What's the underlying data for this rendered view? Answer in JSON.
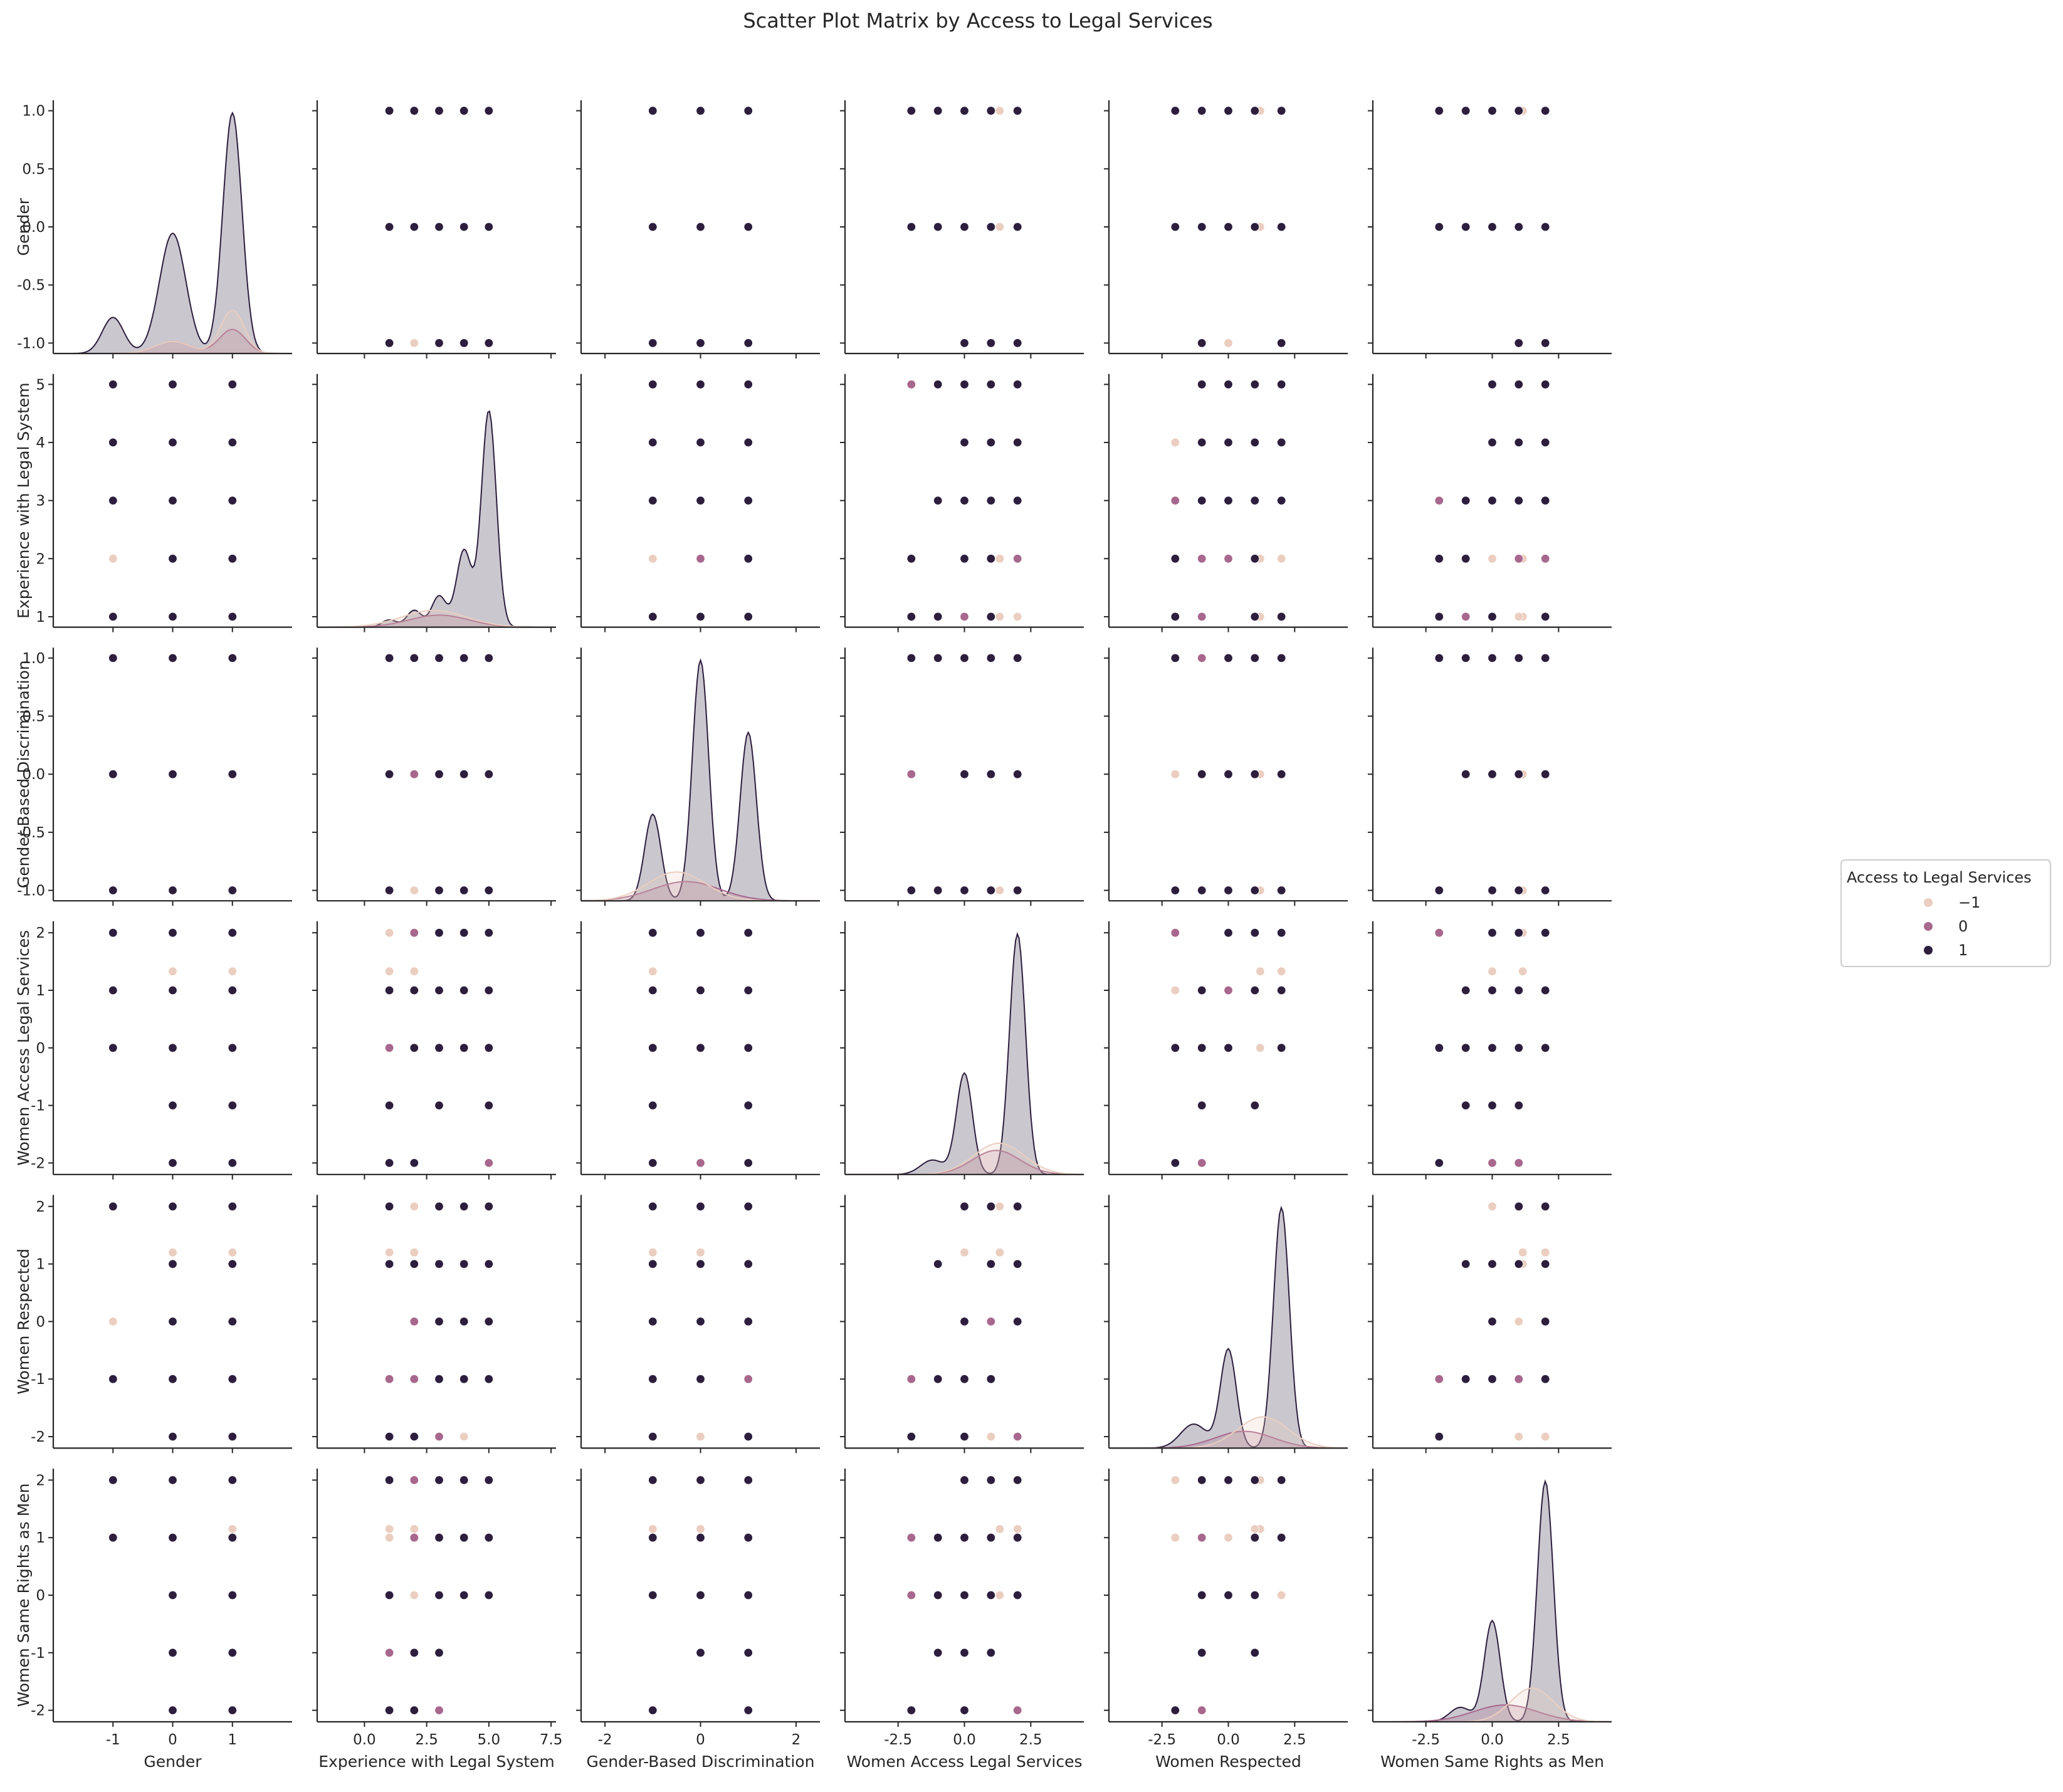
{
  "chart_data": {
    "type": "scatter",
    "title": "Scatter Plot Matrix by Access to Legal Services",
    "variables": [
      {
        "key": "g",
        "label": "Gender",
        "lim": [
          -2.0,
          2.0
        ],
        "ticks": [
          -1,
          0,
          1
        ],
        "tick_labels": [
          "-1",
          "0",
          "1"
        ],
        "yticks": [
          -1.0,
          -0.5,
          0.0,
          0.5,
          1.0
        ],
        "ytick_labels": [
          "-1.0",
          "-0.5",
          "0.0",
          "0.5",
          "1.0"
        ],
        "ylim": [
          -1.09,
          1.09
        ]
      },
      {
        "key": "e",
        "label": "Experience with Legal System",
        "lim": [
          -1.9,
          7.7
        ],
        "ticks": [
          0.0,
          2.5,
          5.0,
          7.5
        ],
        "tick_labels": [
          "0.0",
          "2.5",
          "5.0",
          "7.5"
        ],
        "yticks": [
          1,
          2,
          3,
          4,
          5
        ],
        "ytick_labels": [
          "1",
          "2",
          "3",
          "4",
          "5"
        ],
        "ylim": [
          0.82,
          5.18
        ]
      },
      {
        "key": "d",
        "label": "Gender-Based Discrimination",
        "lim": [
          -2.5,
          2.5
        ],
        "ticks": [
          -2,
          0,
          2
        ],
        "tick_labels": [
          "-2",
          "0",
          "2"
        ],
        "yticks": [
          -1.0,
          -0.5,
          0.0,
          0.5,
          1.0
        ],
        "ytick_labels": [
          "-1.0",
          "-0.5",
          "0.0",
          "0.5",
          "1.0"
        ],
        "ylim": [
          -1.09,
          1.09
        ]
      },
      {
        "key": "a",
        "label": "Women Access Legal Services",
        "lim": [
          -4.5,
          4.5
        ],
        "ticks": [
          -2.5,
          0.0,
          2.5
        ],
        "tick_labels": [
          "-2.5",
          "0.0",
          "2.5"
        ],
        "yticks": [
          -2,
          -1,
          0,
          1,
          2
        ],
        "ytick_labels": [
          "-2",
          "-1",
          "0",
          "1",
          "2"
        ],
        "ylim": [
          -2.2,
          2.2
        ]
      },
      {
        "key": "r",
        "label": "Women Respected",
        "lim": [
          -4.5,
          4.5
        ],
        "ticks": [
          -2.5,
          0.0,
          2.5
        ],
        "tick_labels": [
          "-2.5",
          "0.0",
          "2.5"
        ],
        "yticks": [
          -2,
          -1,
          0,
          1,
          2
        ],
        "ytick_labels": [
          "-2",
          "-1",
          "0",
          "1",
          "2"
        ],
        "ylim": [
          -2.2,
          2.2
        ]
      },
      {
        "key": "s",
        "label": "Women Same Rights as Men",
        "lim": [
          -4.5,
          4.5
        ],
        "ticks": [
          -2.5,
          0.0,
          2.5
        ],
        "tick_labels": [
          "-2.5",
          "0.0",
          "2.5"
        ],
        "yticks": [
          -2,
          -1,
          0,
          1,
          2
        ],
        "ytick_labels": [
          "-2",
          "-1",
          "0",
          "1",
          "2"
        ],
        "ylim": [
          -2.2,
          2.2
        ]
      }
    ],
    "hue": {
      "title": "Access to Legal Services",
      "levels": [
        {
          "label": "−1",
          "value": -1,
          "color": "#ebcec0"
        },
        {
          "label": "0",
          "value": 0,
          "color": "#a8678d"
        },
        {
          "label": "1",
          "value": 1,
          "color": "#2d1e3e"
        }
      ]
    },
    "points": [
      {
        "g": 1,
        "e": 5,
        "d": 0,
        "a": 2,
        "r": 2,
        "s": 2,
        "h": -1
      },
      {
        "g": 1,
        "e": 1,
        "d": -1,
        "a": 1.33,
        "r": 1.2,
        "s": 1.15,
        "h": -1
      },
      {
        "g": -1,
        "e": 2,
        "d": 0,
        "a": 1,
        "r": 0,
        "s": 1,
        "h": -1
      },
      {
        "g": 0,
        "e": 4,
        "d": 0,
        "a": 2,
        "r": -2,
        "s": 2,
        "h": -1
      },
      {
        "g": 1,
        "e": 3,
        "d": 1,
        "a": 1,
        "r": 1,
        "s": 1,
        "h": -1
      },
      {
        "g": 0,
        "e": 1,
        "d": 0,
        "a": 1,
        "r": 2,
        "s": 1,
        "h": -1
      },
      {
        "g": 1,
        "e": 2,
        "d": 0,
        "a": 2,
        "r": 1,
        "s": 1.15,
        "h": -1
      },
      {
        "g": 0,
        "e": 2,
        "d": -1,
        "a": 1.33,
        "r": 2,
        "s": 0,
        "h": -1
      },
      {
        "g": 0,
        "e": 2,
        "d": 0,
        "a": 0,
        "r": 1.2,
        "s": 2,
        "h": -1
      },
      {
        "g": 1,
        "e": 2,
        "d": 0,
        "a": 1,
        "r": 2,
        "s": 1,
        "h": -1
      },
      {
        "g": 1,
        "e": 5,
        "d": 0,
        "a": 2,
        "r": 2,
        "s": 2,
        "h": -1
      },
      {
        "g": 0,
        "e": 1,
        "d": 0,
        "a": 2,
        "r": 1,
        "s": 2,
        "h": -1
      },
      {
        "g": 1,
        "e": 2,
        "d": 0,
        "a": 1,
        "r": -2,
        "s": 1,
        "h": -1
      },
      {
        "g": 0,
        "e": 4,
        "d": 0,
        "a": 1,
        "r": 1,
        "s": 1,
        "h": -1
      },
      {
        "g": 0,
        "e": 1,
        "d": 1,
        "a": -2,
        "r": -1,
        "s": -2,
        "h": 0
      },
      {
        "g": 0,
        "e": 5,
        "d": 1,
        "a": 2,
        "r": 0,
        "s": 2,
        "h": 0
      },
      {
        "g": 0,
        "e": 2,
        "d": 0,
        "a": 2,
        "r": 1,
        "s": 1,
        "h": 0
      },
      {
        "g": 1,
        "e": 5,
        "d": 0,
        "a": -2,
        "r": -1,
        "s": 0,
        "h": 0
      },
      {
        "g": 0,
        "e": 3,
        "d": 1,
        "a": 2,
        "r": -2,
        "s": -2,
        "h": 0
      },
      {
        "g": 0,
        "e": 1,
        "d": 1,
        "a": 0,
        "r": -1,
        "s": -1,
        "h": 0
      },
      {
        "g": 1,
        "e": 2,
        "d": 0,
        "a": -2,
        "r": -1,
        "s": 1,
        "h": 0
      },
      {
        "g": 0,
        "e": 5,
        "d": 1,
        "a": 1,
        "r": 2,
        "s": 2,
        "h": 0
      },
      {
        "g": 0,
        "e": 2,
        "d": 1,
        "a": 1,
        "r": 0,
        "s": 2,
        "h": 0
      },
      {
        "g": -1,
        "e": 5,
        "d": 1,
        "a": 2,
        "r": 2,
        "s": 2,
        "h": 1
      },
      {
        "g": -1,
        "e": 4,
        "d": 1,
        "a": 2,
        "r": 2,
        "s": 1,
        "h": 1
      },
      {
        "g": -1,
        "e": 3,
        "d": -1,
        "a": 0,
        "r": -1,
        "s": 2,
        "h": 1
      },
      {
        "g": 0,
        "e": 5,
        "d": -1,
        "a": -1,
        "r": 1,
        "s": 1,
        "h": 1
      },
      {
        "g": 0,
        "e": 4,
        "d": 1,
        "a": 2,
        "r": 0,
        "s": 0,
        "h": 1
      },
      {
        "g": 0,
        "e": 3,
        "d": 0,
        "a": 0,
        "r": -1,
        "s": -1,
        "h": 1
      },
      {
        "g": 1,
        "e": 5,
        "d": 1,
        "a": 1,
        "r": 2,
        "s": 2,
        "h": 1
      },
      {
        "g": 1,
        "e": 4,
        "d": 0,
        "a": 2,
        "r": 1,
        "s": 1,
        "h": 1
      },
      {
        "g": 1,
        "e": 3,
        "d": -1,
        "a": 0,
        "r": 0,
        "s": 0,
        "h": 1
      },
      {
        "g": 1,
        "e": 2,
        "d": 1,
        "a": -2,
        "r": -2,
        "s": -2,
        "h": 1
      },
      {
        "g": 1,
        "e": 1,
        "d": 1,
        "a": -1,
        "r": 1,
        "s": 0,
        "h": 1
      },
      {
        "g": 1,
        "e": 5,
        "d": 1,
        "a": 1,
        "r": 2,
        "s": 2,
        "h": 1
      },
      {
        "g": 1,
        "e": 4,
        "d": 1,
        "a": 2,
        "r": 2,
        "s": 2,
        "h": 1
      },
      {
        "g": 1,
        "e": 3,
        "d": 0,
        "a": 1,
        "r": 1,
        "s": 1,
        "h": 1
      },
      {
        "g": 0,
        "e": 5,
        "d": 0,
        "a": 0,
        "r": 0,
        "s": 0,
        "h": 1
      },
      {
        "g": 0,
        "e": 3,
        "d": 1,
        "a": 2,
        "r": 2,
        "s": 2,
        "h": 1
      },
      {
        "g": 0,
        "e": 1,
        "d": -1,
        "a": -2,
        "r": -2,
        "s": -2,
        "h": 1
      },
      {
        "g": 0,
        "e": 4,
        "d": 0,
        "a": 1,
        "r": 1,
        "s": 1,
        "h": 1
      },
      {
        "g": 1,
        "e": 5,
        "d": 0,
        "a": 0,
        "r": 2,
        "s": 2,
        "h": 1
      },
      {
        "g": 1,
        "e": 4,
        "d": -1,
        "a": 2,
        "r": 2,
        "s": 2,
        "h": 1
      },
      {
        "g": 1,
        "e": 5,
        "d": 1,
        "a": 2,
        "r": 0,
        "s": 0,
        "h": 1
      },
      {
        "g": 1,
        "e": 3,
        "d": 1,
        "a": -1,
        "r": 1,
        "s": -1,
        "h": 1
      },
      {
        "g": 1,
        "e": 4,
        "d": 0,
        "a": 0,
        "r": 2,
        "s": 1,
        "h": 1
      },
      {
        "g": 1,
        "e": 5,
        "d": -1,
        "a": 1,
        "r": -1,
        "s": 0,
        "h": 1
      },
      {
        "g": 1,
        "e": 3,
        "d": 1,
        "a": 1,
        "r": 1,
        "s": 1,
        "h": 1
      },
      {
        "g": 0,
        "e": 2,
        "d": 1,
        "a": 0,
        "r": -2,
        "s": -2,
        "h": 1
      },
      {
        "g": 0,
        "e": 5,
        "d": 0,
        "a": 1,
        "r": 1,
        "s": 1,
        "h": 1
      },
      {
        "g": 0,
        "e": 4,
        "d": -1,
        "a": 2,
        "r": 2,
        "s": 2,
        "h": 1
      },
      {
        "g": -1,
        "e": 1,
        "d": 0,
        "a": 1,
        "r": 2,
        "s": 2,
        "h": 1
      },
      {
        "g": 0,
        "e": 2,
        "d": 1,
        "a": 1,
        "r": 1,
        "s": -1,
        "h": 1
      },
      {
        "g": 1,
        "e": 5,
        "d": 0,
        "a": 0,
        "r": 0,
        "s": 2,
        "h": 1
      },
      {
        "g": 0,
        "e": 3,
        "d": -1,
        "a": -1,
        "r": -1,
        "s": 0,
        "h": 1
      },
      {
        "g": 1,
        "e": 4,
        "d": 1,
        "a": 2,
        "r": 1,
        "s": 1,
        "h": 1
      },
      {
        "g": 0,
        "e": 5,
        "d": 0,
        "a": 2,
        "r": 2,
        "s": 2,
        "h": 1
      },
      {
        "g": 1,
        "e": 1,
        "d": 0,
        "a": 1,
        "r": 1,
        "s": 2,
        "h": 1
      },
      {
        "g": 0,
        "e": 4,
        "d": 0,
        "a": 0,
        "r": -1,
        "s": 0,
        "h": 1
      },
      {
        "g": 0,
        "e": 3,
        "d": 0,
        "a": 2,
        "r": 2,
        "s": 1,
        "h": 1
      },
      {
        "g": 1,
        "e": 5,
        "d": -1,
        "a": 2,
        "r": 2,
        "s": 2,
        "h": 1
      }
    ],
    "kde": {
      "g": {
        "1": [
          [
            -1,
            0.15,
            0.18
          ],
          [
            0,
            0.5,
            0.22
          ],
          [
            1,
            1.0,
            0.16
          ]
        ],
        "0": [
          [
            0,
            0.05,
            0.3
          ],
          [
            1,
            0.1,
            0.22
          ]
        ],
        "-1": [
          [
            0,
            0.05,
            0.3
          ],
          [
            1,
            0.18,
            0.2
          ]
        ]
      },
      "e": {
        "1": [
          [
            1,
            0.03,
            0.3
          ],
          [
            2,
            0.07,
            0.3
          ],
          [
            3,
            0.13,
            0.3
          ],
          [
            4,
            0.32,
            0.3
          ],
          [
            5,
            0.9,
            0.3
          ]
        ],
        "0": [
          [
            3,
            0.05,
            1.2
          ]
        ],
        "-1": [
          [
            2.8,
            0.07,
            1.3
          ]
        ]
      },
      "d": {
        "1": [
          [
            -1,
            0.36,
            0.17
          ],
          [
            0,
            1.0,
            0.17
          ],
          [
            1,
            0.7,
            0.17
          ]
        ],
        "0": [
          [
            -0.3,
            0.08,
            0.7
          ]
        ],
        "-1": [
          [
            -0.5,
            0.12,
            0.6
          ]
        ]
      },
      "a": {
        "1": [
          [
            -1.2,
            0.06,
            0.45
          ],
          [
            0,
            0.42,
            0.3
          ],
          [
            2,
            1.0,
            0.3
          ]
        ],
        "0": [
          [
            1.2,
            0.1,
            0.9
          ]
        ],
        "-1": [
          [
            1.3,
            0.13,
            0.95
          ]
        ]
      },
      "r": {
        "1": [
          [
            -1.3,
            0.1,
            0.5
          ],
          [
            0,
            0.41,
            0.3
          ],
          [
            2,
            1.0,
            0.3
          ]
        ],
        "0": [
          [
            0.6,
            0.07,
            1.1
          ]
        ],
        "-1": [
          [
            1.3,
            0.13,
            0.95
          ]
        ]
      },
      "s": {
        "1": [
          [
            -1.2,
            0.06,
            0.4
          ],
          [
            0,
            0.42,
            0.3
          ],
          [
            2,
            1.0,
            0.3
          ]
        ],
        "0": [
          [
            0.5,
            0.07,
            1.2
          ]
        ],
        "-1": [
          [
            1.5,
            0.14,
            0.8
          ]
        ]
      }
    }
  }
}
